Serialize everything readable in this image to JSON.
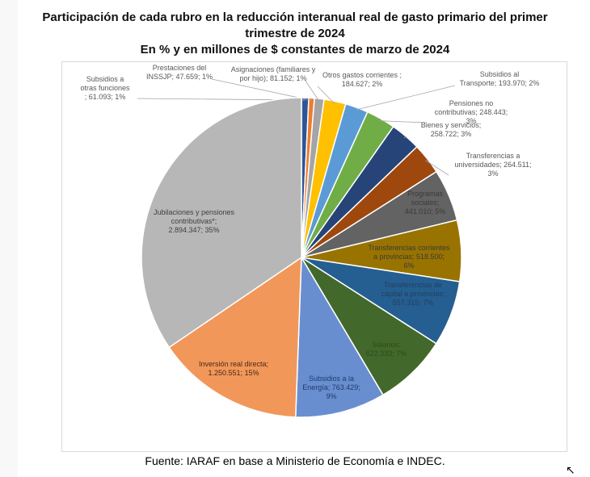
{
  "title_lines": [
    "Participación de cada rubro en la reducción interanual real de gasto primario del primer",
    "trimestre de 2024",
    "En % y en millones de $ constantes de marzo de 2024"
  ],
  "source": "Fuente: IARAF en base a Ministerio de Economía e INDEC.",
  "chart_data": {
    "type": "pie",
    "title": "Participación de cada rubro en la reducción interanual real de gasto primario del primer trimestre de 2024 — En % y en millones de $ constantes de marzo de 2024",
    "start": "top, clockwise",
    "slices": [
      {
        "name": "Subsidios a otras funciones",
        "value": 61093,
        "value_label": "61.093",
        "percent": "1%",
        "color": "#2e5597",
        "label_lines": [
          "Subsidios a",
          "otras funciones",
          "; 61.093; 1%"
        ]
      },
      {
        "name": "Prestaciones del INSSJP",
        "value": 47659,
        "value_label": "47.659",
        "percent": "1%",
        "color": "#ed7d31",
        "label_lines": [
          "Prestaciones del",
          "INSSJP; 47.659; 1%"
        ]
      },
      {
        "name": "Asignaciones (familiares y por hijo)",
        "value": 81152,
        "value_label": "81.152",
        "percent": "1%",
        "color": "#a5a5a5",
        "label_lines": [
          "Asignaciones (familiares y",
          "por hijo); 81.152; 1%"
        ]
      },
      {
        "name": "Otros gastos corrientes",
        "value": 184627,
        "value_label": "184.627",
        "percent": "2%",
        "color": "#ffc000",
        "label_lines": [
          "Otros gastos corrientes ;",
          "184.627; 2%"
        ]
      },
      {
        "name": "Subsidios al Transporte",
        "value": 193970,
        "value_label": "193.970",
        "percent": "2%",
        "color": "#5b9bd5",
        "label_lines": [
          "Subsidios al",
          "Transporte; 193.970; 2%"
        ]
      },
      {
        "name": "Pensiones no contributivas",
        "value": 248443,
        "value_label": "248.443",
        "percent": "3%",
        "color": "#70ad47",
        "label_lines": [
          "Pensiones no",
          "contributivas; 248.443;",
          "3%"
        ]
      },
      {
        "name": "Bienes y servicios",
        "value": 258722,
        "value_label": "258.722",
        "percent": "3%",
        "color": "#264478",
        "label_lines": [
          "Bienes y servicios;",
          "258.722; 3%"
        ]
      },
      {
        "name": "Transferencias a universidades",
        "value": 264511,
        "value_label": "264.511",
        "percent": "3%",
        "color": "#9e480e",
        "label_lines": [
          "Transferencias a",
          "universidades; 264.511;",
          "3%"
        ]
      },
      {
        "name": "Programas sociales",
        "value": 441010,
        "value_label": "441.010",
        "percent": "5%",
        "color": "#636363",
        "label_lines": [
          "Programas",
          "sociales;",
          "441.010; 5%"
        ]
      },
      {
        "name": "Transferencias corrientes a provincias",
        "value": 518500,
        "value_label": "518.500",
        "percent": "6%",
        "color": "#997300",
        "label_lines": [
          "Transferencias corrientes",
          "a provincias; 518.500;",
          "6%"
        ]
      },
      {
        "name": "Transferencias de capital a provincias",
        "value": 557315,
        "value_label": "557.315",
        "percent": "7%",
        "color": "#255e91",
        "label_lines": [
          "Transferencias de",
          "capital a provincias;",
          "557.315; 7%"
        ]
      },
      {
        "name": "Salarios",
        "value": 622333,
        "value_label": "622.333",
        "percent": "7%",
        "color": "#43682b",
        "label_lines": [
          "Salarios;",
          "622.333; 7%"
        ]
      },
      {
        "name": "Subsidios a la Energía",
        "value": 763429,
        "value_label": "763.429",
        "percent": "9%",
        "color": "#698ed0",
        "label_lines": [
          "Subsidios a la",
          "Energía; 763.429;",
          "9%"
        ]
      },
      {
        "name": "Inversión real directa",
        "value": 1250551,
        "value_label": "1.250.551",
        "percent": "15%",
        "color": "#f1975a",
        "label_lines": [
          "Inversión real directa;",
          "1.250.551; 15%"
        ]
      },
      {
        "name": "Jubilaciones y pensiones contributivas*",
        "value": 2894347,
        "value_label": "2.894.347",
        "percent": "35%",
        "color": "#b7b7b7",
        "label_lines": [
          "Jubilaciones y pensiones",
          "contributivas*;",
          "2.894.347; 35%"
        ]
      }
    ]
  }
}
